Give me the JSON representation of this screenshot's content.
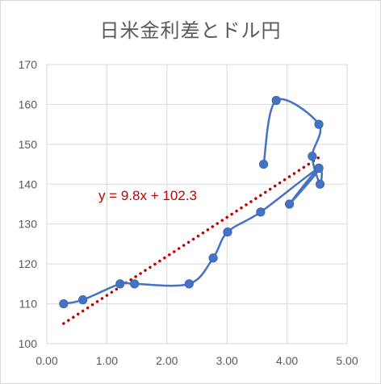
{
  "chart_data": {
    "type": "scatter",
    "title": "日米金利差とドル円",
    "xlim": [
      0,
      5
    ],
    "ylim": [
      100,
      170
    ],
    "x_ticks": [
      "0.00",
      "1.00",
      "2.00",
      "3.00",
      "4.00",
      "5.00"
    ],
    "y_ticks": [
      "100",
      "110",
      "120",
      "130",
      "140",
      "150",
      "160",
      "170"
    ],
    "grid": true,
    "series": [
      {
        "points": [
          [
            0.28,
            110
          ],
          [
            0.6,
            111
          ],
          [
            1.22,
            115
          ],
          [
            1.46,
            115
          ],
          [
            2.37,
            115
          ],
          [
            2.77,
            121.5
          ],
          [
            3.01,
            128
          ],
          [
            3.56,
            133
          ],
          [
            4.53,
            144
          ],
          [
            4.04,
            135
          ],
          [
            4.53,
            144
          ],
          [
            4.55,
            140
          ],
          [
            4.42,
            147
          ],
          [
            4.53,
            155
          ],
          [
            3.82,
            161
          ],
          [
            3.61,
            145
          ]
        ],
        "color": "#4472c4",
        "line": "smooth"
      }
    ],
    "trendline": {
      "slope": 9.8,
      "intercept": 102.3,
      "x_range": [
        0.28,
        4.55
      ],
      "color": "#c00000",
      "style": "dotted",
      "label": "y = 9.8x + 102.3"
    }
  }
}
